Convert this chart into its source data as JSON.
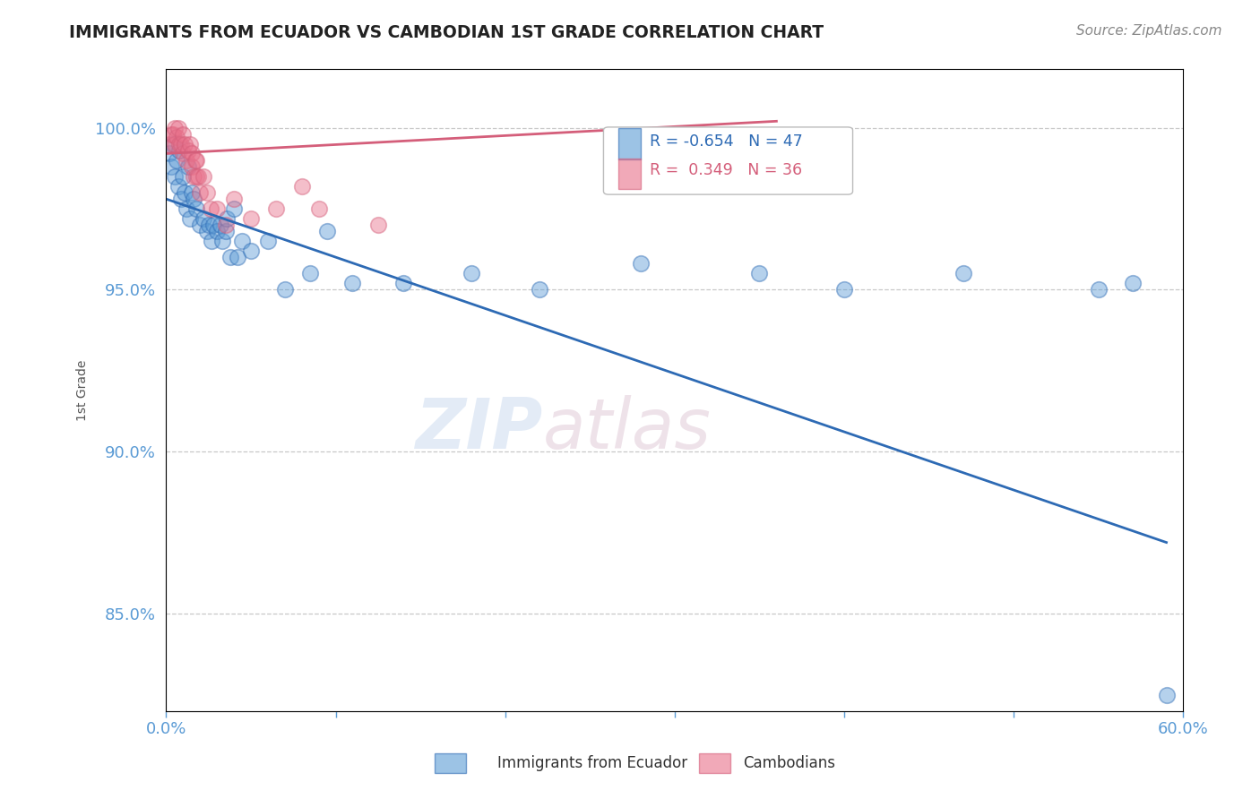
{
  "title": "IMMIGRANTS FROM ECUADOR VS CAMBODIAN 1ST GRADE CORRELATION CHART",
  "source": "Source: ZipAtlas.com",
  "ylabel": "1st Grade",
  "xlim": [
    0.0,
    60.0
  ],
  "ylim": [
    82.0,
    101.8
  ],
  "yticks": [
    85.0,
    90.0,
    95.0,
    100.0
  ],
  "ytick_labels": [
    "85.0%",
    "90.0%",
    "95.0%",
    "100.0%"
  ],
  "blue_color": "#5b9bd5",
  "pink_color": "#e8708a",
  "blue_line_color": "#2d6ab4",
  "pink_line_color": "#d45e7a",
  "legend_R_blue": "-0.654",
  "legend_N_blue": "47",
  "legend_R_pink": "0.349",
  "legend_N_pink": "36",
  "blue_scatter_x": [
    0.2,
    0.3,
    0.4,
    0.5,
    0.6,
    0.7,
    0.8,
    0.9,
    1.0,
    1.1,
    1.2,
    1.3,
    1.4,
    1.5,
    1.6,
    1.8,
    2.0,
    2.2,
    2.4,
    2.5,
    2.7,
    2.8,
    3.0,
    3.2,
    3.3,
    3.5,
    3.6,
    3.8,
    4.0,
    4.2,
    4.5,
    5.0,
    6.0,
    7.0,
    8.5,
    9.5,
    11.0,
    14.0,
    18.0,
    22.0,
    28.0,
    35.0,
    40.0,
    47.0,
    55.0,
    57.0,
    59.0
  ],
  "blue_scatter_y": [
    99.2,
    98.8,
    99.5,
    98.5,
    99.0,
    98.2,
    99.3,
    97.8,
    98.5,
    98.0,
    97.5,
    98.8,
    97.2,
    98.0,
    97.8,
    97.5,
    97.0,
    97.2,
    96.8,
    97.0,
    96.5,
    97.0,
    96.8,
    97.0,
    96.5,
    96.8,
    97.2,
    96.0,
    97.5,
    96.0,
    96.5,
    96.2,
    96.5,
    95.0,
    95.5,
    96.8,
    95.2,
    95.2,
    95.5,
    95.0,
    95.8,
    95.5,
    95.0,
    95.5,
    95.0,
    95.2,
    82.5
  ],
  "pink_scatter_x": [
    0.2,
    0.3,
    0.4,
    0.5,
    0.5,
    0.6,
    0.7,
    0.8,
    0.9,
    1.0,
    1.0,
    1.1,
    1.2,
    1.3,
    1.4,
    1.5,
    1.5,
    1.6,
    1.7,
    1.8,
    1.8,
    1.9,
    2.0,
    2.2,
    2.4,
    2.6,
    3.0,
    3.5,
    4.0,
    5.0,
    6.5,
    8.0,
    9.0,
    12.5,
    32.0,
    36.0
  ],
  "pink_scatter_y": [
    99.5,
    99.8,
    99.8,
    99.5,
    100.0,
    99.7,
    100.0,
    99.5,
    99.5,
    99.2,
    99.8,
    99.5,
    99.0,
    99.3,
    99.5,
    99.2,
    98.8,
    98.5,
    99.0,
    98.5,
    99.0,
    98.5,
    98.0,
    98.5,
    98.0,
    97.5,
    97.5,
    97.0,
    97.8,
    97.2,
    97.5,
    98.2,
    97.5,
    97.0,
    99.5,
    99.0
  ],
  "blue_trendline_x": [
    0.0,
    59.0
  ],
  "blue_trendline_y": [
    97.8,
    87.2
  ],
  "pink_trendline_x": [
    0.0,
    36.0
  ],
  "pink_trendline_y": [
    99.2,
    100.2
  ],
  "background_color": "#ffffff",
  "grid_color": "#c8c8c8",
  "title_color": "#222222",
  "axis_label_color": "#555555",
  "tick_color": "#5b9bd5",
  "watermark_zip": "ZIP",
  "watermark_atlas": "atlas"
}
